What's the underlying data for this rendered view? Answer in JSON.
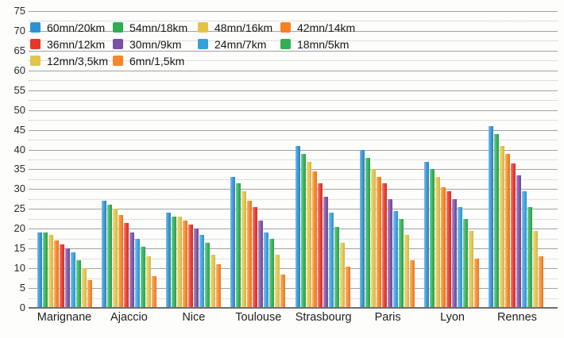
{
  "chart_data": {
    "type": "bar",
    "title": "",
    "xlabel": "",
    "ylabel": "",
    "ylim": [
      0,
      75
    ],
    "y_major_step": 5,
    "y_minor_step": 2.5,
    "y_ticks": [
      0,
      5,
      10,
      15,
      20,
      25,
      30,
      35,
      40,
      45,
      50,
      55,
      60,
      65,
      70,
      75
    ],
    "grid": true,
    "legend_position": "top-left",
    "categories": [
      "Marignane",
      "Ajaccio",
      "Nice",
      "Toulouse",
      "Strasbourg",
      "Paris",
      "Lyon",
      "Rennes"
    ],
    "series": [
      {
        "name": "60mn/20km",
        "color": "#2E91D2",
        "values": [
          19,
          27,
          24,
          33,
          41,
          40,
          37,
          46
        ]
      },
      {
        "name": "54mn/18km",
        "color": "#2FAD52",
        "values": [
          19,
          26,
          23,
          31.5,
          39,
          38,
          35,
          44
        ]
      },
      {
        "name": "48mn/16km",
        "color": "#E4C248",
        "values": [
          18.5,
          25,
          23,
          29.5,
          37,
          35,
          33,
          41
        ]
      },
      {
        "name": "42mn/14km",
        "color": "#F58220",
        "values": [
          17,
          23.5,
          22,
          27,
          34.5,
          33,
          30.5,
          39
        ]
      },
      {
        "name": "36mn/12km",
        "color": "#E7352A",
        "values": [
          16,
          21.5,
          21,
          25.5,
          31.5,
          31.5,
          29.5,
          36.5
        ]
      },
      {
        "name": "30mn/9km",
        "color": "#7B51A4",
        "values": [
          15,
          19,
          20,
          22,
          28,
          27.5,
          27.5,
          33.5
        ]
      },
      {
        "name": "24mn/7km",
        "color": "#35A0DC",
        "values": [
          14,
          17.5,
          18.5,
          19,
          24,
          24.5,
          25.5,
          29.5
        ]
      },
      {
        "name": "18mn/5km",
        "color": "#31AF55",
        "values": [
          12,
          15.5,
          16.5,
          17.5,
          20.5,
          22.5,
          22.5,
          25.5
        ]
      },
      {
        "name": "12mn/3,5km",
        "color": "#E2C44E",
        "values": [
          10,
          13,
          13.5,
          13.5,
          16.5,
          18.5,
          19.5,
          19.5
        ]
      },
      {
        "name": "6mn/1,5km",
        "color": "#F6872B",
        "values": [
          7,
          8,
          11,
          8.5,
          10.5,
          12,
          12.5,
          13
        ]
      }
    ]
  }
}
